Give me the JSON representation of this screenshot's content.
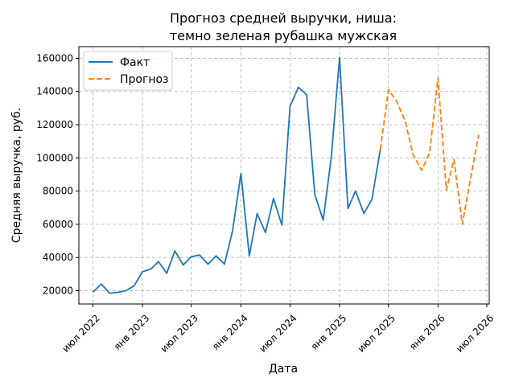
{
  "chart_data": {
    "type": "line",
    "title_line1": "Прогноз средней выручки, ниша:",
    "title_line2": "темно зеленая рубашка мужская",
    "xlabel": "Дата",
    "ylabel": "Средняя выручка, руб.",
    "grid": true,
    "legend_placement": "top-left",
    "xlim": [
      "2022-05-10",
      "2026-07-10"
    ],
    "ylim": [
      12000,
      167000
    ],
    "x_ticks": [
      {
        "date": "2022-07-01",
        "label": "июл 2022"
      },
      {
        "date": "2023-01-01",
        "label": "янв 2023"
      },
      {
        "date": "2023-07-01",
        "label": "июл 2023"
      },
      {
        "date": "2024-01-01",
        "label": "янв 2024"
      },
      {
        "date": "2024-07-01",
        "label": "июл 2024"
      },
      {
        "date": "2025-01-01",
        "label": "янв 2025"
      },
      {
        "date": "2025-07-01",
        "label": "июл 2025"
      },
      {
        "date": "2026-01-01",
        "label": "янв 2026"
      },
      {
        "date": "2026-07-01",
        "label": "июл 2026"
      }
    ],
    "y_ticks": [
      {
        "value": 20000,
        "label": "20000"
      },
      {
        "value": 40000,
        "label": "40000"
      },
      {
        "value": 60000,
        "label": "60000"
      },
      {
        "value": 80000,
        "label": "80000"
      },
      {
        "value": 100000,
        "label": "100000"
      },
      {
        "value": 120000,
        "label": "120000"
      },
      {
        "value": 140000,
        "label": "140000"
      },
      {
        "value": 160000,
        "label": "160000"
      }
    ],
    "series": [
      {
        "name": "Факт",
        "color": "#1f77b4",
        "style": "solid",
        "points": [
          {
            "x": "2022-07-01",
            "y": 19000
          },
          {
            "x": "2022-08-01",
            "y": 24000
          },
          {
            "x": "2022-09-01",
            "y": 18500
          },
          {
            "x": "2022-10-01",
            "y": 19000
          },
          {
            "x": "2022-11-01",
            "y": 20000
          },
          {
            "x": "2022-12-01",
            "y": 23000
          },
          {
            "x": "2023-01-01",
            "y": 31500
          },
          {
            "x": "2023-02-01",
            "y": 33000
          },
          {
            "x": "2023-03-01",
            "y": 37500
          },
          {
            "x": "2023-04-01",
            "y": 30500
          },
          {
            "x": "2023-05-01",
            "y": 44000
          },
          {
            "x": "2023-06-01",
            "y": 35500
          },
          {
            "x": "2023-07-01",
            "y": 40500
          },
          {
            "x": "2023-08-01",
            "y": 41500
          },
          {
            "x": "2023-09-01",
            "y": 36000
          },
          {
            "x": "2023-10-01",
            "y": 41000
          },
          {
            "x": "2023-11-01",
            "y": 36000
          },
          {
            "x": "2023-12-01",
            "y": 56000
          },
          {
            "x": "2024-01-01",
            "y": 90500
          },
          {
            "x": "2024-02-01",
            "y": 41000
          },
          {
            "x": "2024-03-01",
            "y": 66500
          },
          {
            "x": "2024-04-01",
            "y": 55000
          },
          {
            "x": "2024-05-01",
            "y": 75500
          },
          {
            "x": "2024-06-01",
            "y": 59500
          },
          {
            "x": "2024-07-01",
            "y": 131000
          },
          {
            "x": "2024-08-01",
            "y": 142500
          },
          {
            "x": "2024-09-01",
            "y": 138000
          },
          {
            "x": "2024-10-01",
            "y": 78000
          },
          {
            "x": "2024-11-01",
            "y": 62500
          },
          {
            "x": "2024-12-01",
            "y": 100000
          },
          {
            "x": "2025-01-01",
            "y": 160500
          },
          {
            "x": "2025-02-01",
            "y": 69500
          },
          {
            "x": "2025-03-01",
            "y": 80000
          },
          {
            "x": "2025-04-01",
            "y": 66500
          },
          {
            "x": "2025-05-01",
            "y": 75000
          },
          {
            "x": "2025-06-01",
            "y": 105000
          }
        ]
      },
      {
        "name": "Прогноз",
        "color": "#ff7f0e",
        "style": "dashed",
        "points": [
          {
            "x": "2025-06-01",
            "y": 105000
          },
          {
            "x": "2025-07-01",
            "y": 141000
          },
          {
            "x": "2025-08-01",
            "y": 134000
          },
          {
            "x": "2025-09-01",
            "y": 122000
          },
          {
            "x": "2025-10-01",
            "y": 102000
          },
          {
            "x": "2025-11-01",
            "y": 92500
          },
          {
            "x": "2025-12-01",
            "y": 103000
          },
          {
            "x": "2026-01-01",
            "y": 148000
          },
          {
            "x": "2026-02-01",
            "y": 80500
          },
          {
            "x": "2026-03-01",
            "y": 99000
          },
          {
            "x": "2026-04-01",
            "y": 60000
          },
          {
            "x": "2026-05-01",
            "y": 87000
          },
          {
            "x": "2026-06-01",
            "y": 114000
          }
        ]
      }
    ]
  }
}
